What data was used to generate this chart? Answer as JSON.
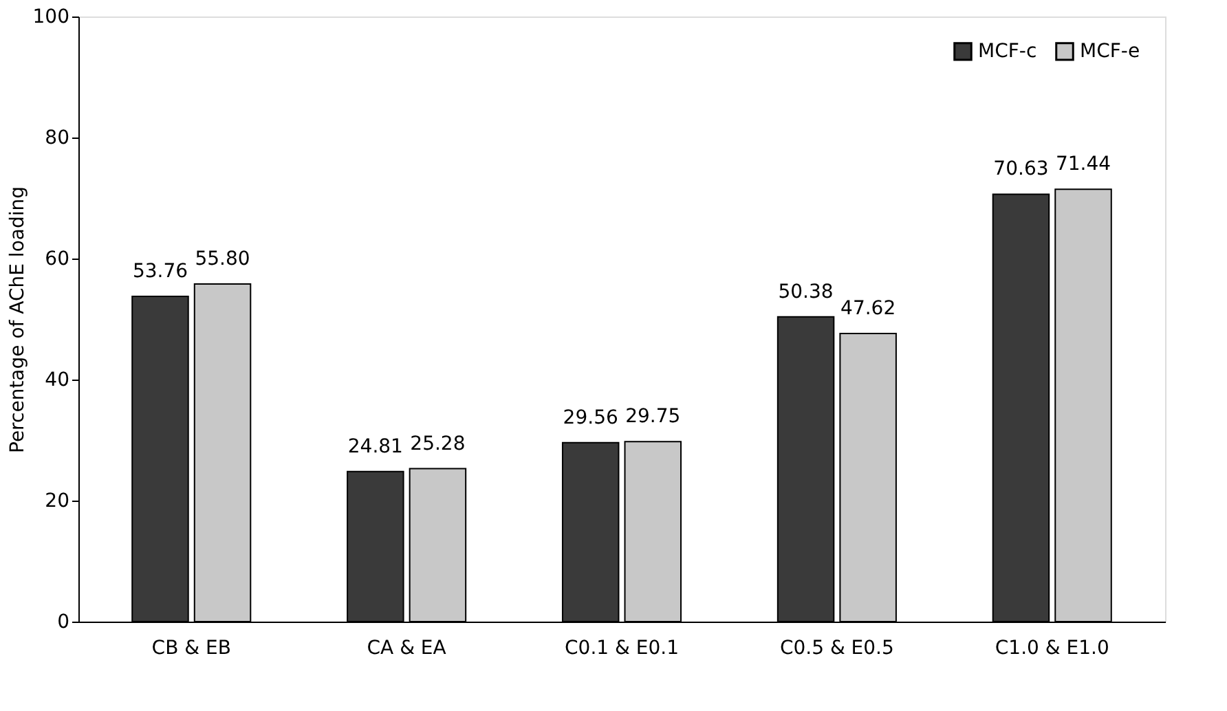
{
  "chart_data": {
    "type": "bar",
    "ylabel": "Percentage of AChE loading",
    "categories": [
      "CB & EB",
      "CA & EA",
      "C0.1 & E0.1",
      "C0.5 & E0.5",
      "C1.0 & E1.0"
    ],
    "series": [
      {
        "name": "MCF-c",
        "color": "#3a3a3a",
        "values": [
          53.76,
          24.81,
          29.56,
          50.38,
          70.63
        ],
        "value_labels": [
          "53.76",
          "24.81",
          "29.56",
          "50.38",
          "70.63"
        ]
      },
      {
        "name": "MCF-e",
        "color": "#c8c8c8",
        "values": [
          55.8,
          25.28,
          29.75,
          47.62,
          71.44
        ],
        "value_labels": [
          "55.80",
          "25.28",
          "29.75",
          "47.62",
          "71.44"
        ]
      }
    ],
    "ylim": [
      0,
      100
    ],
    "yticks": [
      0,
      20,
      40,
      60,
      80,
      100
    ],
    "grid": false,
    "legend": "top right"
  }
}
